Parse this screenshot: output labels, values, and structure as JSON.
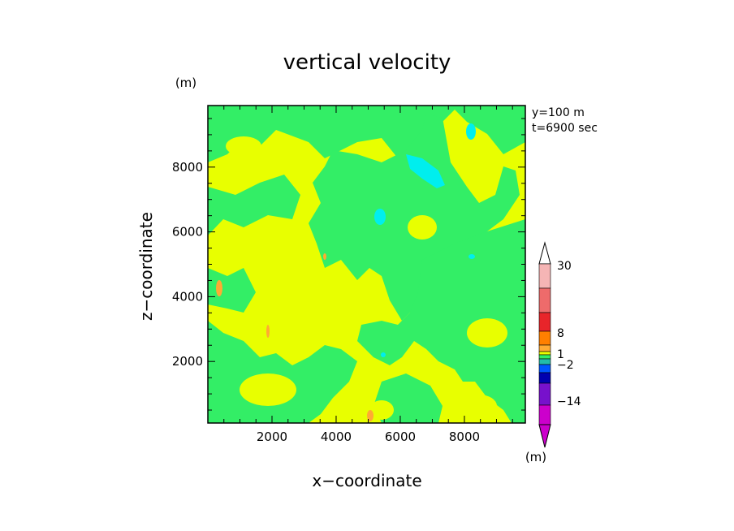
{
  "chart_data": {
    "type": "heatmap",
    "title": "vertical velocity",
    "xlabel": "x−coordinate",
    "ylabel": "z−coordinate",
    "y_unit": "(m)",
    "x_unit": "(m)",
    "xlim": [
      0,
      9900
    ],
    "ylim": [
      100,
      9900
    ],
    "xticks": [
      2000,
      4000,
      6000,
      8000
    ],
    "yticks": [
      2000,
      4000,
      6000,
      8000
    ],
    "xtick_labels": [
      "2000",
      "4000",
      "6000",
      "8000"
    ],
    "ytick_labels": [
      "2000",
      "4000",
      "6000",
      "8000"
    ],
    "annotation_lines": [
      "y=100 m",
      "t=6900 sec"
    ],
    "colorbar": {
      "labeled_levels": [
        "30",
        "8",
        "1",
        "−2",
        "−14"
      ],
      "colors_top_to_bottom": [
        "#f5b5b5",
        "#ee6b6b",
        "#e8252a",
        "#ff7f00",
        "#ffaa33",
        "#e8ff00",
        "#33ee66",
        "#22bbaa",
        "#0055ff",
        "#0000b0",
        "#7711cc",
        "#cc00cc"
      ]
    },
    "field_colors": {
      "positive_small": "#e8ff00",
      "negative_small": "#33ee66",
      "negative_medium": "#00eeee",
      "positive_medium": "#ffaa33"
    }
  }
}
